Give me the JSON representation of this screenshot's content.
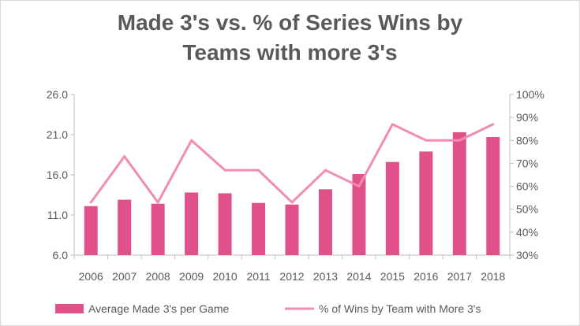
{
  "chart_data": {
    "type": "bar",
    "title_lines": [
      "Made 3's vs. % of Series Wins by",
      "Teams with more 3's"
    ],
    "categories": [
      "2006",
      "2007",
      "2008",
      "2009",
      "2010",
      "2011",
      "2012",
      "2013",
      "2014",
      "2015",
      "2016",
      "2017",
      "2018"
    ],
    "series": [
      {
        "name": "Average Made 3's per Game",
        "type": "bar",
        "axis": "left",
        "color": "#e0518a",
        "values": [
          12.1,
          12.9,
          12.4,
          13.8,
          13.7,
          12.5,
          12.3,
          14.2,
          16.1,
          17.6,
          18.9,
          21.3,
          20.7
        ]
      },
      {
        "name": "% of Wins by Team with More 3's",
        "type": "line",
        "axis": "right",
        "color": "#f28cb4",
        "values": [
          53,
          73,
          53,
          80,
          67,
          67,
          53,
          67,
          60,
          87,
          80,
          80,
          87
        ]
      }
    ],
    "y_left": {
      "min": 6.0,
      "max": 26.0,
      "ticks": [
        "6.0",
        "11.0",
        "16.0",
        "21.0",
        "26.0"
      ]
    },
    "y_right": {
      "min": 30,
      "max": 100,
      "ticks": [
        "30%",
        "40%",
        "50%",
        "60%",
        "70%",
        "80%",
        "90%",
        "100%"
      ]
    },
    "legend_position": "bottom",
    "grid": false
  }
}
